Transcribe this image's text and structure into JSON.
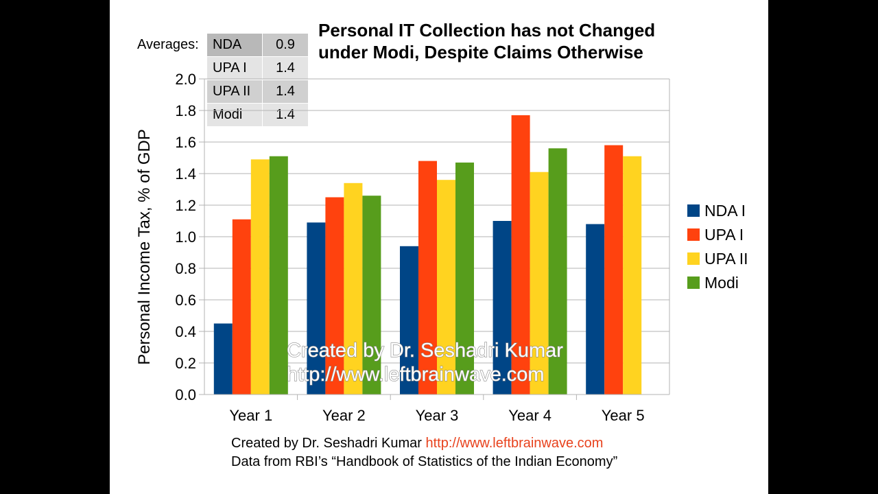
{
  "title_line1": "Personal IT Collection has not Changed",
  "title_line2": "under Modi, Despite Claims Otherwise",
  "averages": {
    "label": "Averages:",
    "rows": [
      {
        "name": "NDA",
        "value": "0.9"
      },
      {
        "name": "UPA I",
        "value": "1.4"
      },
      {
        "name": "UPA II",
        "value": "1.4"
      },
      {
        "name": "Modi",
        "value": "1.4"
      }
    ]
  },
  "watermark": {
    "line1": "Created by Dr. Seshadri Kumar",
    "line2": "http://www.leftbrainwave.com"
  },
  "footer": {
    "line1_text": "Created by Dr. Seshadri Kumar ",
    "line1_link": "http://www.leftbrainwave.com",
    "line2": "Data from RBI’s “Handbook of Statistics of the Indian Economy”",
    "link_color": "#e8421d"
  },
  "chart_data": {
    "type": "bar",
    "title": "",
    "ylabel": "Personal Income Tax, % of GDP",
    "xlabel": "",
    "ylim": [
      0,
      2.0
    ],
    "yticks": [
      "0.0",
      "0.2",
      "0.4",
      "0.6",
      "0.8",
      "1.0",
      "1.2",
      "1.4",
      "1.6",
      "1.8",
      "2.0"
    ],
    "grid": true,
    "legend_position": "right",
    "categories": [
      "Year 1",
      "Year 2",
      "Year 3",
      "Year 4",
      "Year 5"
    ],
    "series": [
      {
        "name": "NDA I",
        "color": "#004586",
        "values": [
          0.45,
          1.09,
          0.94,
          1.1,
          1.08
        ]
      },
      {
        "name": "UPA I",
        "color": "#ff420e",
        "values": [
          1.11,
          1.25,
          1.48,
          1.77,
          1.58
        ]
      },
      {
        "name": "UPA II",
        "color": "#ffd320",
        "values": [
          1.49,
          1.34,
          1.36,
          1.41,
          1.51
        ]
      },
      {
        "name": "Modi",
        "color": "#579d1c",
        "values": [
          1.51,
          1.26,
          1.47,
          1.56,
          null
        ]
      }
    ]
  }
}
